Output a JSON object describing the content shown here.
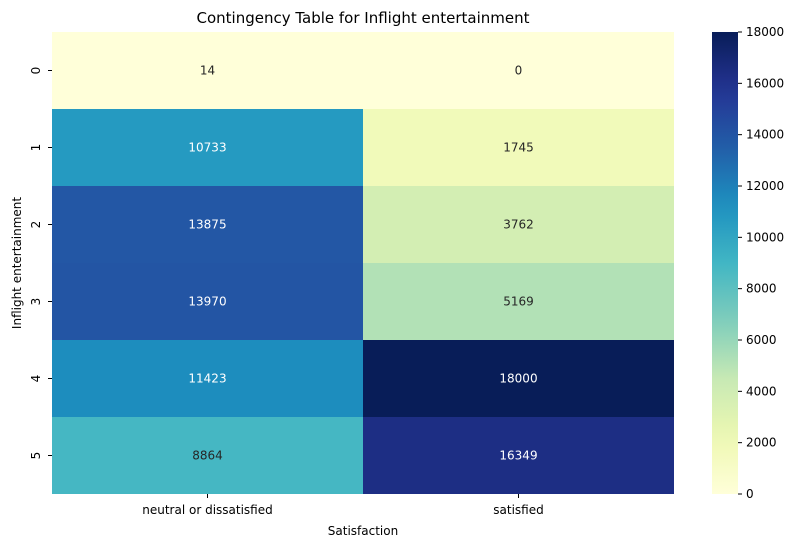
{
  "chart_data": {
    "type": "heatmap",
    "title": "Contingency Table for Inflight entertainment",
    "xlabel": "Satisfaction",
    "ylabel": "Inflight entertainment",
    "x_categories": [
      "neutral or dissatisfied",
      "satisfied"
    ],
    "y_categories": [
      "0",
      "1",
      "2",
      "3",
      "4",
      "5"
    ],
    "values": [
      [
        14,
        0
      ],
      [
        10733,
        1745
      ],
      [
        13875,
        3762
      ],
      [
        13970,
        5169
      ],
      [
        11423,
        18000
      ],
      [
        8864,
        16349
      ]
    ],
    "colorbar": {
      "colormap": "YlGnBu",
      "range": [
        0,
        18000
      ],
      "ticks": [
        "0",
        "2000",
        "4000",
        "6000",
        "8000",
        "10000",
        "12000",
        "14000",
        "16000",
        "18000"
      ]
    },
    "grid": false
  }
}
